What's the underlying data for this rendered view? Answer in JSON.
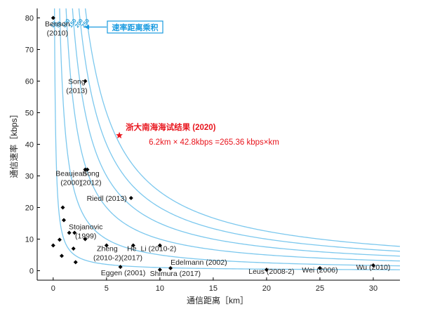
{
  "chart_data": {
    "type": "scatter",
    "xlabel": "通信距离［km］",
    "ylabel": "通信速率［kbps］",
    "xlim": [
      -1.5,
      32.5
    ],
    "ylim": [
      -3,
      83
    ],
    "xticks": [
      0,
      5,
      10,
      15,
      20,
      25,
      30
    ],
    "yticks": [
      0,
      10,
      20,
      30,
      40,
      50,
      60,
      70,
      80
    ],
    "curves_label": "速率距离乘积",
    "curves": [
      {
        "name": "10",
        "product": 10
      },
      {
        "name": "50",
        "product": 50
      },
      {
        "name": "100",
        "product": 100
      },
      {
        "name": "150",
        "product": 150
      },
      {
        "name": "200",
        "product": 200
      },
      {
        "name": "250",
        "product": 250
      }
    ],
    "labeled_points": [
      {
        "x": 0,
        "y": 80,
        "label": [
          "Benson",
          "(2010)"
        ]
      },
      {
        "x": 3,
        "y": 60,
        "label": [
          "Song",
          "(2013)"
        ]
      },
      {
        "x": 3,
        "y": 32,
        "label": [
          "Beaujean",
          "(2000)"
        ]
      },
      {
        "x": 3.2,
        "y": 32,
        "label": [
          "Song",
          "(2012)"
        ]
      },
      {
        "x": 7.3,
        "y": 23,
        "label": [
          "Riedl (2013)"
        ]
      },
      {
        "x": 5,
        "y": 8,
        "label": [
          "Zheng",
          "(2010-2)"
        ]
      },
      {
        "x": 7.5,
        "y": 8,
        "label": [
          "He",
          "(2017)"
        ]
      },
      {
        "x": 10,
        "y": 8,
        "label": [
          "Li (2010-2)"
        ]
      },
      {
        "x": 6.3,
        "y": 1.2,
        "label": [
          "Eggen (2001)"
        ]
      },
      {
        "x": 10,
        "y": 0.3,
        "label": [
          "Shimura (2017)"
        ]
      },
      {
        "x": 11,
        "y": 0.8,
        "label": [
          "Edelmann (2002)"
        ]
      },
      {
        "x": 20,
        "y": 0.3,
        "label": [
          "Leus (2008-2)"
        ]
      },
      {
        "x": 25,
        "y": 0.8,
        "label": [
          "Wei (2006)"
        ]
      },
      {
        "x": 30,
        "y": 1.7,
        "label": [
          "Wu (2010)"
        ]
      },
      {
        "x": 2,
        "y": 12,
        "label": [
          "Stojanovic",
          "(1999)"
        ]
      }
    ],
    "unlabeled_points": [
      {
        "x": 0,
        "y": 8
      },
      {
        "x": 0.6,
        "y": 9.8
      },
      {
        "x": 0.8,
        "y": 4.7
      },
      {
        "x": 0.9,
        "y": 20
      },
      {
        "x": 1,
        "y": 16
      },
      {
        "x": 1.5,
        "y": 12
      },
      {
        "x": 1.9,
        "y": 7
      },
      {
        "x": 2.1,
        "y": 2.7
      },
      {
        "x": 3,
        "y": 10
      }
    ],
    "highlight": {
      "x": 6.2,
      "y": 42.8,
      "title": "浙大南海海试结果 (2020)",
      "calc": "6.2km × 42.8kbps =265.36 kbps×km",
      "color": "#e8141c"
    },
    "colors": {
      "curve": "#7cc8ee",
      "curve_text": "#2a9fd8",
      "legend": "#1a9be0",
      "point": "#000000"
    }
  }
}
